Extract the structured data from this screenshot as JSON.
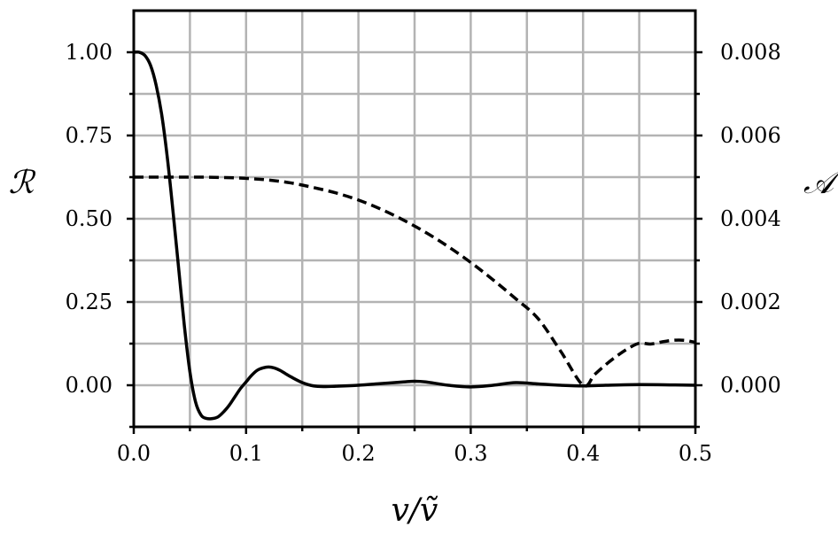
{
  "chart_data": {
    "type": "line",
    "xlabel": "v/ṽ",
    "ylabel_left": "ℛ",
    "ylabel_right": "𝒜",
    "xlim": [
      0.0,
      0.5
    ],
    "ylim_left": [
      -0.125,
      1.125
    ],
    "ylim_right": [
      -0.001,
      0.009
    ],
    "grid": true,
    "x_ticks": [
      "0.0",
      "0.1",
      "0.2",
      "0.3",
      "0.4",
      "0.5"
    ],
    "y_left_ticks": [
      "0.00",
      "0.25",
      "0.50",
      "0.75",
      "1.00"
    ],
    "y_right_ticks": [
      "0.000",
      "0.002",
      "0.004",
      "0.006",
      "0.008"
    ],
    "series": [
      {
        "style": "solid",
        "axis": "left",
        "x": [
          0.0,
          0.005,
          0.01,
          0.015,
          0.02,
          0.025,
          0.03,
          0.035,
          0.04,
          0.045,
          0.05,
          0.055,
          0.06,
          0.065,
          0.07,
          0.075,
          0.08,
          0.085,
          0.09,
          0.095,
          0.1,
          0.105,
          0.11,
          0.115,
          0.12,
          0.125,
          0.13,
          0.135,
          0.14,
          0.15,
          0.16,
          0.17,
          0.18,
          0.2,
          0.22,
          0.24,
          0.25,
          0.26,
          0.28,
          0.3,
          0.32,
          0.34,
          0.36,
          0.38,
          0.4,
          0.42,
          0.45,
          0.48,
          0.5
        ],
        "y": [
          1.0,
          1.0,
          0.99,
          0.96,
          0.9,
          0.81,
          0.68,
          0.52,
          0.35,
          0.18,
          0.04,
          -0.05,
          -0.09,
          -0.1,
          -0.1,
          -0.095,
          -0.08,
          -0.06,
          -0.035,
          -0.01,
          0.01,
          0.03,
          0.045,
          0.052,
          0.055,
          0.052,
          0.045,
          0.035,
          0.025,
          0.008,
          -0.002,
          -0.004,
          -0.003,
          0.0,
          0.005,
          0.01,
          0.012,
          0.01,
          0.0,
          -0.005,
          0.0,
          0.008,
          0.004,
          0.0,
          -0.002,
          0.0,
          0.002,
          0.001,
          0.0
        ]
      },
      {
        "style": "dashed",
        "axis": "right",
        "x": [
          0.0,
          0.02,
          0.04,
          0.06,
          0.08,
          0.1,
          0.12,
          0.14,
          0.16,
          0.18,
          0.2,
          0.22,
          0.24,
          0.26,
          0.28,
          0.3,
          0.32,
          0.34,
          0.36,
          0.38,
          0.4,
          0.41,
          0.42,
          0.43,
          0.44,
          0.45,
          0.46,
          0.47,
          0.48,
          0.49,
          0.5
        ],
        "y": [
          0.005,
          0.005,
          0.005,
          0.005,
          0.00499,
          0.00497,
          0.00493,
          0.00486,
          0.00475,
          0.00462,
          0.00445,
          0.00423,
          0.00397,
          0.00367,
          0.00333,
          0.00295,
          0.00253,
          0.00208,
          0.0016,
          0.00082,
          0.0,
          0.00025,
          0.00049,
          0.0007,
          0.00088,
          0.00101,
          0.00099,
          0.00104,
          0.00108,
          0.00108,
          0.00103
        ]
      }
    ]
  }
}
